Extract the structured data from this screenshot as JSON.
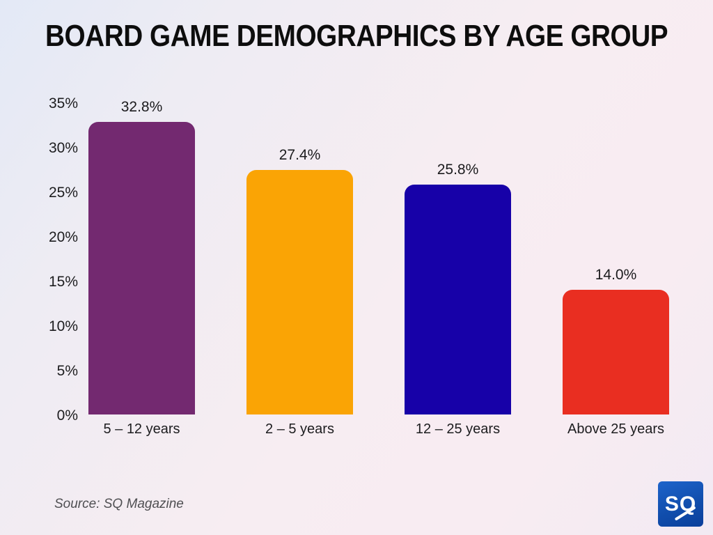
{
  "title": "BOARD GAME DEMOGRAPHICS BY AGE GROUP",
  "chart_data": {
    "type": "bar",
    "title": "BOARD GAME DEMOGRAPHICS BY AGE GROUP",
    "categories": [
      "5 – 12 years",
      "2 – 5 years",
      "12 – 25 years",
      "Above 25 years"
    ],
    "values": [
      32.8,
      27.4,
      25.8,
      14.0
    ],
    "value_labels": [
      "32.8%",
      "27.4%",
      "25.8%",
      "14.0%"
    ],
    "bar_colors": [
      "#732970",
      "#FAA405",
      "#1701A8",
      "#E92E21"
    ],
    "xlabel": "",
    "ylabel": "",
    "ylim": [
      0,
      35
    ],
    "ytick_step": 5,
    "yticks": [
      "0%",
      "5%",
      "10%",
      "15%",
      "20%",
      "25%",
      "30%",
      "35%"
    ],
    "grid": false,
    "legend": "none"
  },
  "footer": {
    "source": "Source: SQ Magazine",
    "logo_text": "SQ"
  },
  "colors": {
    "background_blue": "#e3e9f6",
    "background_pink": "#f8ecf2",
    "title_text": "#0d0d0d",
    "axis_text": "#1d1d1f",
    "source_text": "#4f4f52",
    "logo_gradient_top": "#1d64cb",
    "logo_gradient_bottom": "#0a3f9b"
  }
}
